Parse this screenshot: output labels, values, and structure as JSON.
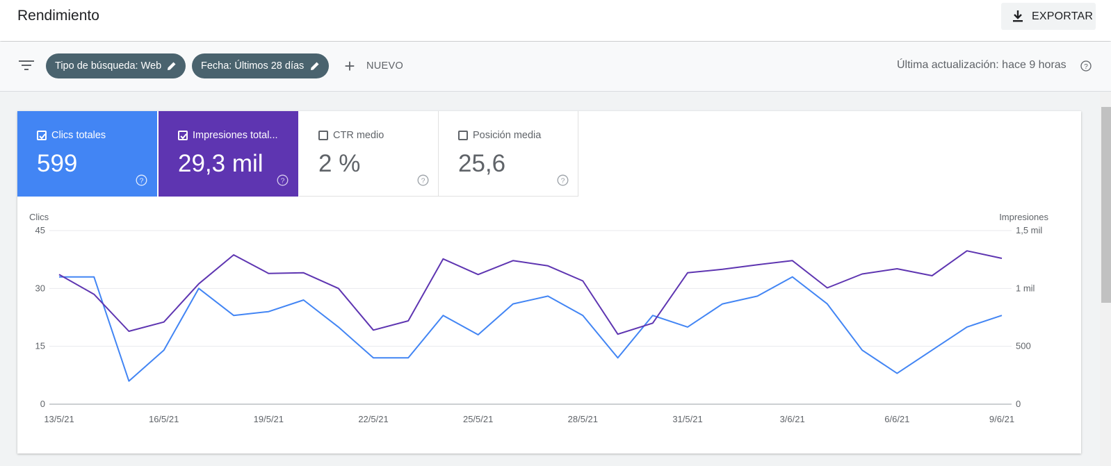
{
  "header": {
    "title": "Rendimiento",
    "export_label": "EXPORTAR"
  },
  "filters": {
    "chips": [
      {
        "label": "Tipo de búsqueda: Web"
      },
      {
        "label": "Fecha: Últimos 28 días"
      }
    ],
    "new_label": "NUEVO",
    "updated_text": "Última actualización: hace 9 horas"
  },
  "metrics": [
    {
      "label": "Clics totales",
      "value": "599",
      "checked": true,
      "color": "#4285f4"
    },
    {
      "label": "Impresiones total...",
      "value": "29,3 mil",
      "checked": true,
      "color": "#5e35b1"
    },
    {
      "label": "CTR medio",
      "value": "2 %",
      "checked": false
    },
    {
      "label": "Posición media",
      "value": "25,6",
      "checked": false
    }
  ],
  "chart_data": {
    "type": "line",
    "left_axis_title": "Clics",
    "right_axis_title": "Impresiones",
    "left_ticks": [
      "45",
      "30",
      "15",
      "0"
    ],
    "right_ticks": [
      "1,5 mil",
      "1 mil",
      "500",
      "0"
    ],
    "ylim_left": [
      0,
      45
    ],
    "ylim_right": [
      0,
      1500
    ],
    "grid": true,
    "x": [
      "13/5/21",
      "14/5/21",
      "15/5/21",
      "16/5/21",
      "17/5/21",
      "18/5/21",
      "19/5/21",
      "20/5/21",
      "21/5/21",
      "22/5/21",
      "23/5/21",
      "24/5/21",
      "25/5/21",
      "26/5/21",
      "27/5/21",
      "28/5/21",
      "29/5/21",
      "30/5/21",
      "31/5/21",
      "1/6/21",
      "2/6/21",
      "3/6/21",
      "4/6/21",
      "5/6/21",
      "6/6/21",
      "7/6/21",
      "8/6/21",
      "9/6/21"
    ],
    "x_tick_labels": [
      "13/5/21",
      "16/5/21",
      "19/5/21",
      "22/5/21",
      "25/5/21",
      "28/5/21",
      "31/5/21",
      "3/6/21",
      "6/6/21",
      "9/6/21"
    ],
    "series": [
      {
        "name": "Clics",
        "axis": "left",
        "color": "#4285f4",
        "values": [
          33,
          33,
          6,
          14,
          30,
          23,
          24,
          27,
          20,
          12,
          12,
          23,
          18,
          26,
          28,
          23,
          12,
          23,
          20,
          26,
          28,
          33,
          26,
          14,
          8,
          14,
          20,
          23
        ]
      },
      {
        "name": "Impresiones",
        "axis": "right",
        "color": "#5e35b1",
        "values": [
          1120,
          950,
          630,
          710,
          1040,
          1290,
          1130,
          1135,
          1000,
          640,
          720,
          1255,
          1120,
          1240,
          1195,
          1065,
          605,
          700,
          1135,
          1165,
          1205,
          1240,
          1005,
          1125,
          1170,
          1110,
          1325,
          1260
        ]
      }
    ]
  }
}
